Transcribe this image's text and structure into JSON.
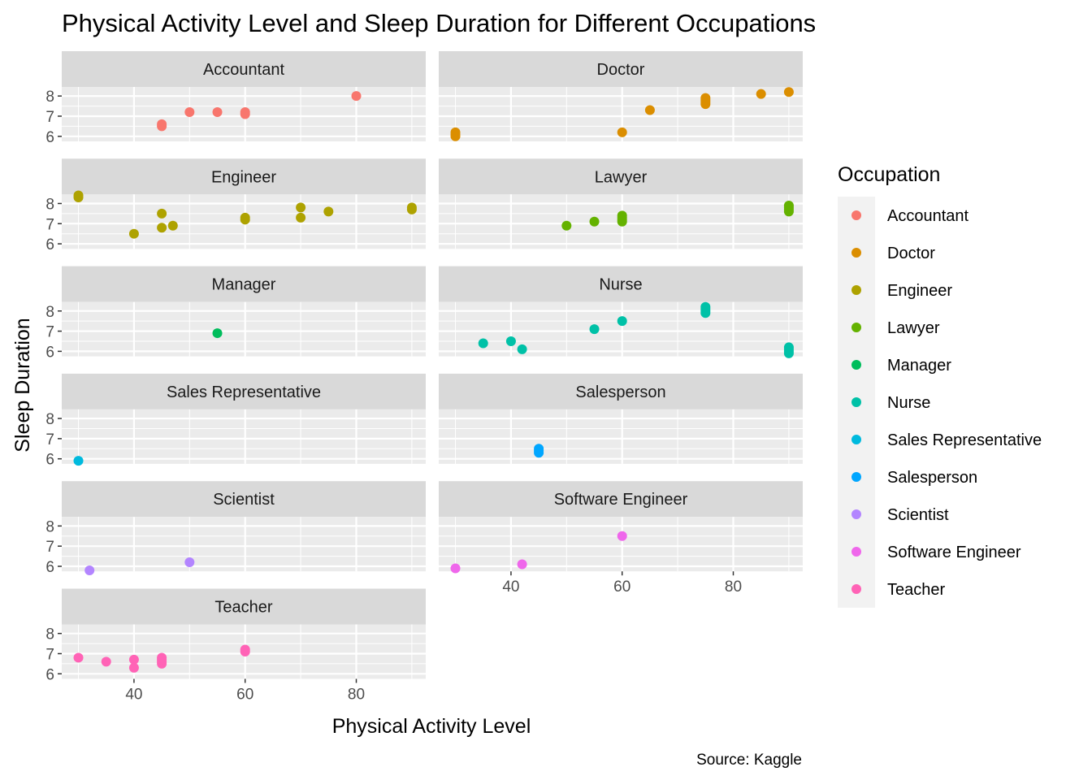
{
  "chart_data": {
    "type": "scatter",
    "title": "Physical Activity Level and Sleep Duration for Different Occupations",
    "xlabel": "Physical Activity Level",
    "ylabel": "Sleep Duration",
    "caption": "Source: Kaggle",
    "legend_title": "Occupation",
    "legend_position": "right",
    "grid": true,
    "xlim": [
      27,
      92.5
    ],
    "ylim": [
      5.75,
      8.45
    ],
    "x_ticks": [
      40,
      60,
      80
    ],
    "y_ticks": [
      6,
      7,
      8
    ],
    "facets": [
      {
        "name": "Accountant",
        "color": "#F8766D",
        "points": [
          [
            45,
            6.5
          ],
          [
            45,
            6.6
          ],
          [
            50,
            7.2
          ],
          [
            55,
            7.2
          ],
          [
            60,
            7.1
          ],
          [
            60,
            7.2
          ],
          [
            80,
            8.0
          ]
        ]
      },
      {
        "name": "Doctor",
        "color": "#DB8E00",
        "points": [
          [
            30,
            6.0
          ],
          [
            30,
            6.1
          ],
          [
            30,
            6.2
          ],
          [
            60,
            6.2
          ],
          [
            65,
            7.3
          ],
          [
            75,
            7.6
          ],
          [
            75,
            7.7
          ],
          [
            75,
            7.8
          ],
          [
            75,
            7.9
          ],
          [
            85,
            8.1
          ],
          [
            90,
            8.2
          ]
        ]
      },
      {
        "name": "Engineer",
        "color": "#AEA200",
        "points": [
          [
            30,
            8.3
          ],
          [
            30,
            8.4
          ],
          [
            40,
            6.5
          ],
          [
            45,
            6.8
          ],
          [
            45,
            7.5
          ],
          [
            47,
            6.9
          ],
          [
            60,
            7.2
          ],
          [
            60,
            7.3
          ],
          [
            70,
            7.3
          ],
          [
            70,
            7.8
          ],
          [
            75,
            7.6
          ],
          [
            90,
            7.7
          ],
          [
            90,
            7.8
          ]
        ]
      },
      {
        "name": "Lawyer",
        "color": "#64B200",
        "points": [
          [
            50,
            6.9
          ],
          [
            55,
            7.1
          ],
          [
            60,
            7.1
          ],
          [
            60,
            7.2
          ],
          [
            60,
            7.3
          ],
          [
            60,
            7.4
          ],
          [
            90,
            7.6
          ],
          [
            90,
            7.7
          ],
          [
            90,
            7.8
          ],
          [
            90,
            7.9
          ]
        ]
      },
      {
        "name": "Manager",
        "color": "#00BD5C",
        "points": [
          [
            55,
            6.9
          ]
        ]
      },
      {
        "name": "Nurse",
        "color": "#00C1A7",
        "points": [
          [
            35,
            6.4
          ],
          [
            40,
            6.5
          ],
          [
            42,
            6.1
          ],
          [
            55,
            7.1
          ],
          [
            60,
            7.5
          ],
          [
            75,
            7.9
          ],
          [
            75,
            8.0
          ],
          [
            75,
            8.1
          ],
          [
            75,
            8.2
          ],
          [
            90,
            5.9
          ],
          [
            90,
            6.0
          ],
          [
            90,
            6.1
          ],
          [
            90,
            6.2
          ]
        ]
      },
      {
        "name": "Sales Representative",
        "color": "#00BADE",
        "points": [
          [
            30,
            5.9
          ]
        ]
      },
      {
        "name": "Salesperson",
        "color": "#00A6FF",
        "points": [
          [
            45,
            6.3
          ],
          [
            45,
            6.4
          ],
          [
            45,
            6.5
          ]
        ]
      },
      {
        "name": "Scientist",
        "color": "#B385FF",
        "points": [
          [
            32,
            5.8
          ],
          [
            50,
            6.2
          ]
        ]
      },
      {
        "name": "Software Engineer",
        "color": "#EF67EB",
        "points": [
          [
            30,
            5.9
          ],
          [
            42,
            6.1
          ],
          [
            60,
            7.5
          ]
        ]
      },
      {
        "name": "Teacher",
        "color": "#FF63B6",
        "points": [
          [
            30,
            6.8
          ],
          [
            35,
            6.6
          ],
          [
            40,
            6.3
          ],
          [
            40,
            6.7
          ],
          [
            45,
            6.5
          ],
          [
            45,
            6.6
          ],
          [
            45,
            6.7
          ],
          [
            45,
            6.8
          ],
          [
            60,
            7.1
          ],
          [
            60,
            7.2
          ]
        ]
      }
    ]
  }
}
